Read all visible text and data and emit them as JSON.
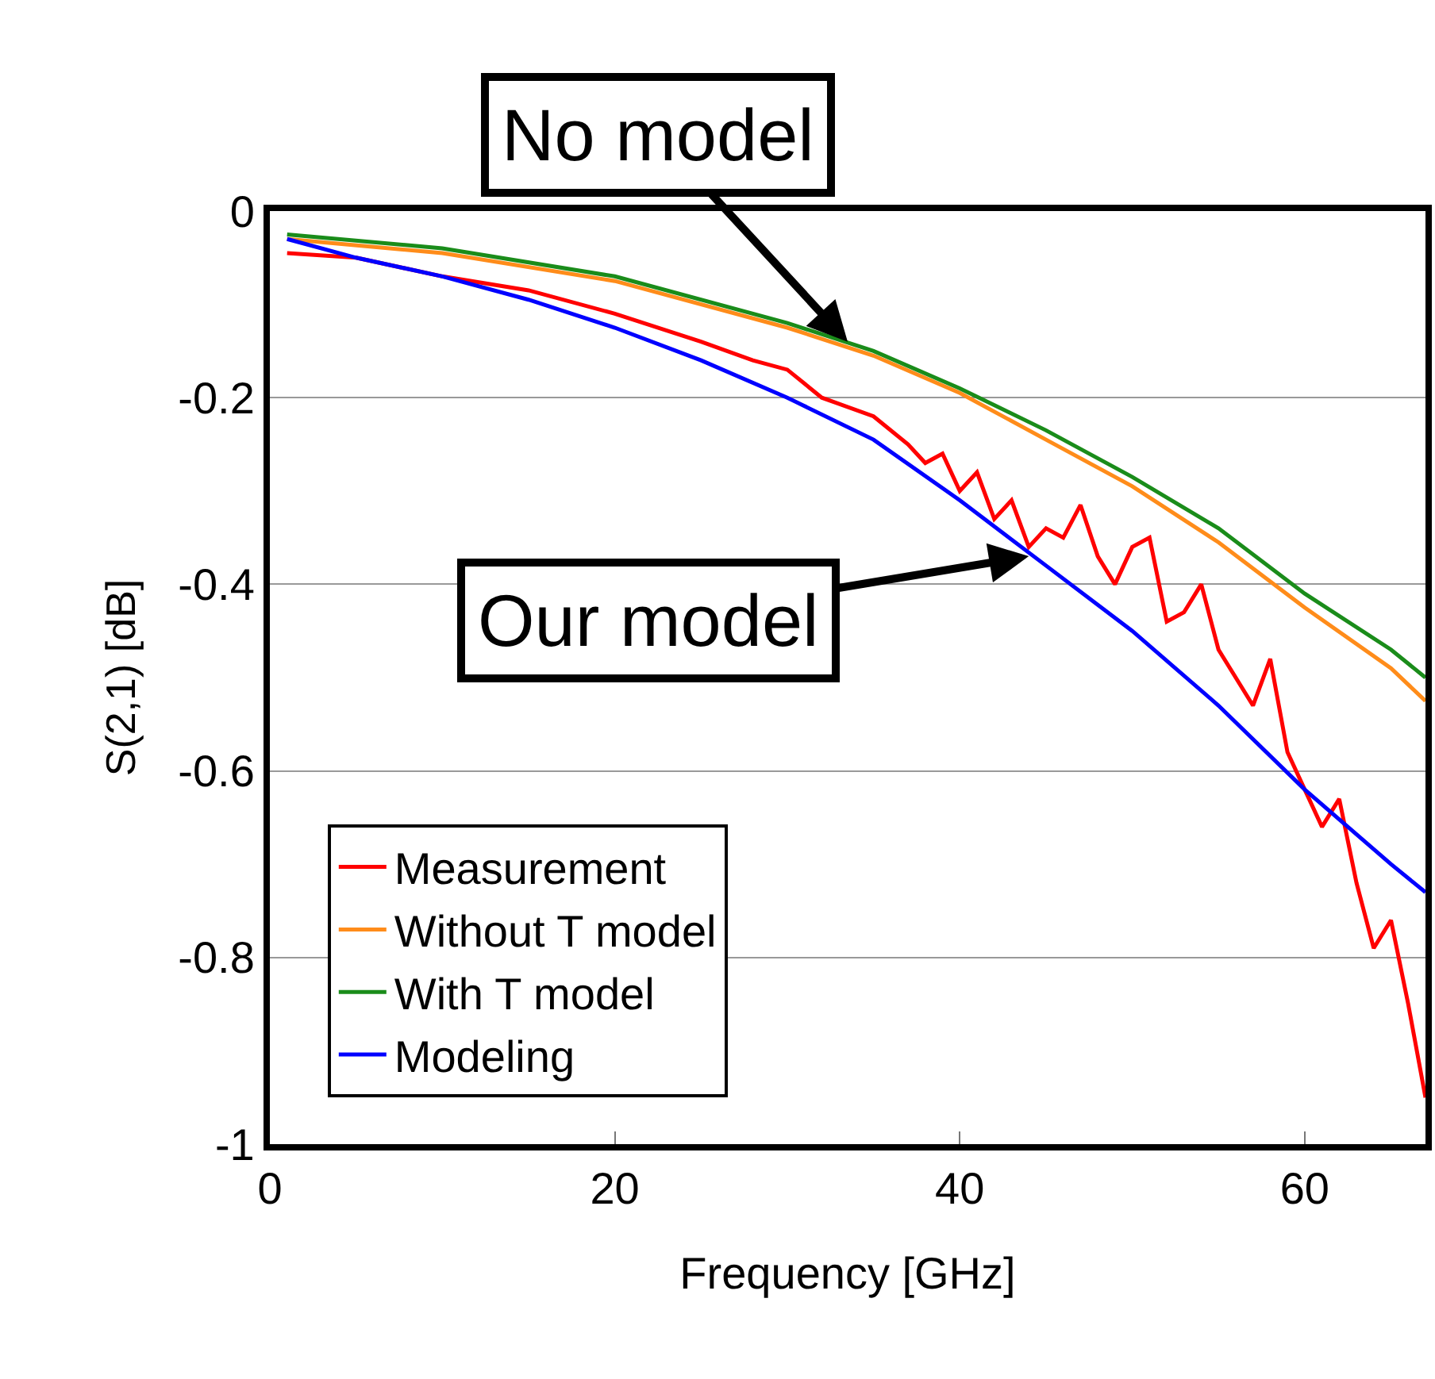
{
  "chart_data": {
    "type": "line",
    "xlabel": "Frequency [GHz]",
    "ylabel": "S(2,1) [dB]",
    "xlim": [
      0,
      67
    ],
    "xticks": [
      0,
      20,
      40,
      60
    ],
    "ylim": [
      -1,
      0
    ],
    "yticks": [
      -1,
      -0.8,
      -0.6,
      -0.4,
      -0.2,
      0
    ],
    "grid": "y",
    "legend": "bottom left",
    "line_style": "solid",
    "marker": "none",
    "series": [
      {
        "name": "Measurement",
        "color": "#ff0000",
        "x": [
          1,
          5,
          10,
          15,
          20,
          25,
          28,
          30,
          32,
          35,
          37,
          38,
          39,
          40,
          41,
          42,
          43,
          44,
          45,
          46,
          47,
          48,
          49,
          50,
          51,
          52,
          53,
          54,
          55,
          56,
          57,
          58,
          59,
          60,
          61,
          62,
          63,
          64,
          65,
          66,
          67
        ],
        "values": [
          -0.045,
          -0.05,
          -0.07,
          -0.085,
          -0.11,
          -0.14,
          -0.16,
          -0.17,
          -0.2,
          -0.22,
          -0.25,
          -0.27,
          -0.26,
          -0.3,
          -0.28,
          -0.33,
          -0.31,
          -0.36,
          -0.34,
          -0.35,
          -0.315,
          -0.37,
          -0.4,
          -0.36,
          -0.35,
          -0.44,
          -0.43,
          -0.4,
          -0.47,
          -0.5,
          -0.53,
          -0.48,
          -0.58,
          -0.62,
          -0.66,
          -0.63,
          -0.72,
          -0.79,
          -0.76,
          -0.85,
          -0.95
        ]
      },
      {
        "name": "Without T model",
        "color": "#ff8c1a",
        "x": [
          1,
          10,
          20,
          30,
          35,
          40,
          45,
          50,
          55,
          60,
          65,
          67
        ],
        "values": [
          -0.03,
          -0.045,
          -0.075,
          -0.125,
          -0.155,
          -0.195,
          -0.245,
          -0.295,
          -0.355,
          -0.425,
          -0.49,
          -0.525
        ]
      },
      {
        "name": "With T model",
        "color": "#1a8c1a",
        "x": [
          1,
          10,
          20,
          30,
          35,
          40,
          45,
          50,
          55,
          60,
          65,
          67
        ],
        "values": [
          -0.025,
          -0.04,
          -0.07,
          -0.12,
          -0.15,
          -0.19,
          -0.235,
          -0.285,
          -0.34,
          -0.41,
          -0.47,
          -0.5
        ]
      },
      {
        "name": "Modeling",
        "color": "#0000ff",
        "x": [
          1,
          5,
          10,
          15,
          20,
          25,
          30,
          35,
          40,
          45,
          50,
          55,
          60,
          65,
          67
        ],
        "values": [
          -0.03,
          -0.05,
          -0.07,
          -0.095,
          -0.125,
          -0.16,
          -0.2,
          -0.245,
          -0.31,
          -0.38,
          -0.45,
          -0.53,
          -0.62,
          -0.7,
          -0.73
        ]
      }
    ],
    "annotations": [
      {
        "text": "No model",
        "x": 33.5,
        "y": -0.14
      },
      {
        "text": "Our model",
        "x": 44,
        "y": -0.37
      }
    ]
  }
}
